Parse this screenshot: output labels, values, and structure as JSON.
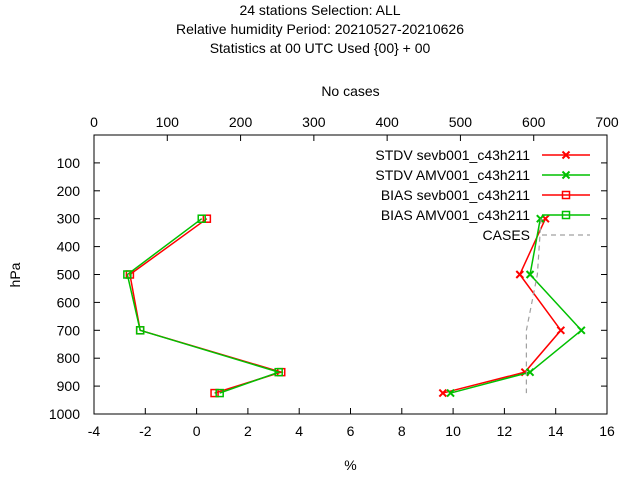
{
  "title_lines": [
    "24 stations Selection: ALL",
    "Relative humidity  Period: 20210527-20210626",
    "Statistics at 00 UTC  Used {00} + 00"
  ],
  "chart_data": {
    "type": "line",
    "orientation": "vertical-profile",
    "xlabel": "%",
    "ylabel": "hPa",
    "x2label": "No cases",
    "xlim": [
      -4,
      16
    ],
    "x2lim": [
      0,
      700
    ],
    "ylim": [
      1000,
      0
    ],
    "x_ticks": [
      -4,
      -2,
      0,
      2,
      4,
      6,
      8,
      10,
      12,
      14,
      16
    ],
    "x2_ticks": [
      0,
      100,
      200,
      300,
      400,
      500,
      600,
      700
    ],
    "y_ticks": [
      100,
      200,
      300,
      400,
      500,
      600,
      700,
      800,
      900,
      1000
    ],
    "legend_position": "top-right",
    "series": [
      {
        "name": "STDV sevb001_c43h211",
        "color": "#ff0000",
        "marker": "x",
        "axis": "x",
        "points": [
          [
            13.6,
            300
          ],
          [
            12.6,
            500
          ],
          [
            14.2,
            700
          ],
          [
            12.8,
            850
          ],
          [
            9.6,
            925
          ]
        ]
      },
      {
        "name": "STDV AMV001_c43h211",
        "color": "#00c000",
        "marker": "x",
        "axis": "x",
        "points": [
          [
            13.4,
            300
          ],
          [
            13.0,
            500
          ],
          [
            15.0,
            700
          ],
          [
            13.0,
            850
          ],
          [
            9.9,
            925
          ]
        ]
      },
      {
        "name": "BIAS sevb001_c43h211",
        "color": "#ff0000",
        "marker": "square",
        "axis": "x",
        "points": [
          [
            0.4,
            300
          ],
          [
            -2.6,
            500
          ],
          [
            -2.2,
            700
          ],
          [
            3.3,
            850
          ],
          [
            0.7,
            925
          ]
        ]
      },
      {
        "name": "BIAS AMV001_c43h211",
        "color": "#00c000",
        "marker": "square",
        "axis": "x",
        "points": [
          [
            0.2,
            300
          ],
          [
            -2.7,
            500
          ],
          [
            -2.2,
            700
          ],
          [
            3.2,
            850
          ],
          [
            0.9,
            925
          ]
        ]
      },
      {
        "name": "CASES",
        "color": "#a0a0a0",
        "marker": "none",
        "dashed": true,
        "axis": "x2",
        "points": [
          [
            610,
            300
          ],
          [
            605,
            500
          ],
          [
            590,
            700
          ],
          [
            590,
            850
          ],
          [
            590,
            925
          ]
        ]
      }
    ]
  }
}
